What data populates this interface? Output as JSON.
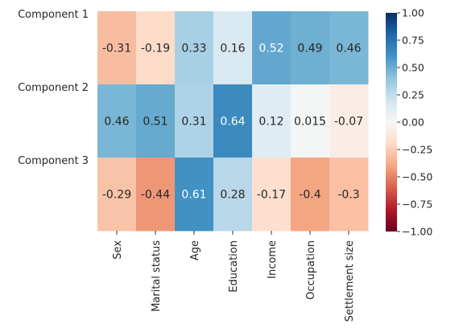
{
  "chart_data": {
    "type": "heatmap",
    "rows": [
      "Component 1",
      "Component 2",
      "Component 3"
    ],
    "columns": [
      "Sex",
      "Marital status",
      "Age",
      "Education",
      "Income",
      "Occupation",
      "Settlement size"
    ],
    "values": [
      [
        -0.31,
        -0.19,
        0.33,
        0.16,
        0.52,
        0.49,
        0.46
      ],
      [
        0.46,
        0.51,
        0.31,
        0.64,
        0.12,
        0.015,
        -0.07
      ],
      [
        -0.29,
        -0.44,
        0.61,
        0.28,
        -0.17,
        -0.4,
        -0.3
      ]
    ],
    "value_labels": [
      [
        "-0.31",
        "-0.19",
        "0.33",
        "0.16",
        "0.52",
        "0.49",
        "0.46"
      ],
      [
        "0.46",
        "0.51",
        "0.31",
        "0.64",
        "0.12",
        "0.015",
        "-0.07"
      ],
      [
        "-0.29",
        "-0.44",
        "0.61",
        "0.28",
        "-0.17",
        "-0.4",
        "-0.3"
      ]
    ],
    "colormap": "RdBu",
    "vmin": -1,
    "vmax": 1,
    "colorbar_ticks": [
      1,
      0.75,
      0.5,
      0.25,
      0,
      -0.25,
      -0.5,
      -0.75,
      -1
    ],
    "colorbar_tick_labels": [
      "1.00",
      "0.75",
      "0.50",
      "0.25",
      "0.00",
      "−0.25",
      "−0.50",
      "−0.75",
      "−1.00"
    ]
  }
}
